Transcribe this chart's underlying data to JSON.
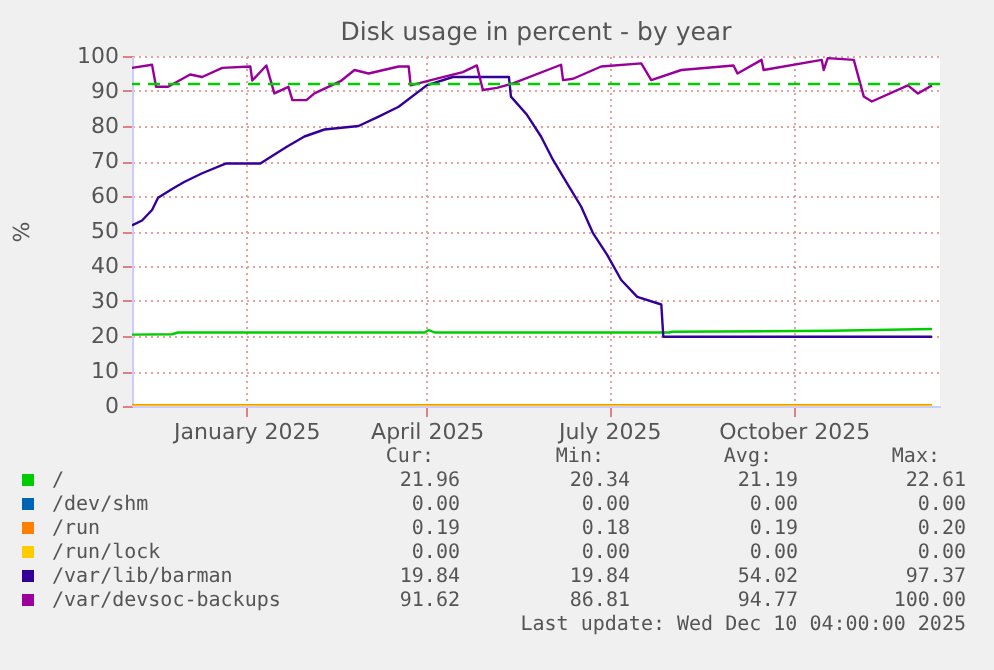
{
  "chart_data": {
    "type": "line",
    "title": "Disk usage in percent - by year",
    "ylabel": "%",
    "xlim": [
      "2024-11-05",
      "2025-12-13"
    ],
    "xticks": [
      {
        "value": "2025-01-01",
        "label": "January 2025"
      },
      {
        "value": "2025-04-01",
        "label": "April 2025"
      },
      {
        "value": "2025-07-01",
        "label": "July 2025"
      },
      {
        "value": "2025-10-01",
        "label": "October 2025"
      }
    ],
    "ylim": [
      0,
      100
    ],
    "yticks": [
      0,
      10,
      20,
      30,
      40,
      50,
      60,
      70,
      80,
      90,
      100
    ],
    "grid": true,
    "legend": "bottom",
    "line_style": "solid",
    "series": [
      {
        "name": "/",
        "color": "#00cc00",
        "x": [
          "2024-11-05",
          "2024-11-25",
          "2024-11-28",
          "2025-03-31",
          "2025-04-02",
          "2025-04-05",
          "2025-07-31",
          "2025-08-01",
          "2025-10-20",
          "2025-12-09"
        ],
        "values": [
          20.4,
          20.5,
          21,
          21,
          21.7,
          21,
          21,
          21.2,
          21.5,
          22
        ]
      },
      {
        "name": "/dev/shm",
        "color": "#0066b3"
      },
      {
        "name": "/run",
        "color": "#ff8000",
        "x": [
          "2024-11-05",
          "2025-12-09"
        ],
        "values": [
          0.2,
          0.2
        ]
      },
      {
        "name": "/run/lock",
        "color": "#ffcc00",
        "x": [
          "2024-11-05",
          "2025-12-09"
        ],
        "values": [
          0,
          0
        ]
      },
      {
        "name": "/var/lib/barman",
        "color": "#330099",
        "x": [
          "2024-11-05",
          "2024-11-10",
          "2024-11-15",
          "2024-11-18",
          "2024-11-25",
          "2024-12-01",
          "2024-12-10",
          "2024-12-22",
          "2025-01-08",
          "2025-01-21",
          "2025-01-30",
          "2025-02-09",
          "2025-02-26",
          "2025-03-08",
          "2025-03-18",
          "2025-04-01",
          "2025-04-14",
          "2025-05-12",
          "2025-05-13",
          "2025-05-21",
          "2025-05-28",
          "2025-06-03",
          "2025-06-10",
          "2025-06-17",
          "2025-06-23",
          "2025-06-30",
          "2025-07-07",
          "2025-07-15",
          "2025-07-27",
          "2025-07-28",
          "2025-12-09"
        ],
        "values": [
          51.6,
          53,
          56,
          59.5,
          62,
          64,
          66.5,
          69.3,
          69.3,
          74,
          77,
          79,
          80,
          82.7,
          85.5,
          91.6,
          94,
          94,
          88.4,
          83.2,
          77,
          70.3,
          63.6,
          57,
          49.3,
          43.2,
          36,
          31.2,
          29,
          19.8,
          19.8
        ]
      },
      {
        "name": "/var/devsoc-backups",
        "color": "#990099",
        "x": [
          "2024-11-05",
          "2024-11-15",
          "2024-11-17",
          "2024-11-23",
          "2024-12-04",
          "2024-12-10",
          "2024-12-20",
          "2025-01-03",
          "2025-01-04",
          "2025-01-11",
          "2025-01-15",
          "2025-01-22",
          "2025-01-24",
          "2025-01-31",
          "2025-02-04",
          "2025-02-17",
          "2025-02-24",
          "2025-03-03",
          "2025-03-18",
          "2025-03-23",
          "2025-03-24",
          "2025-04-07",
          "2025-04-19",
          "2025-04-26",
          "2025-04-29",
          "2025-05-06",
          "2025-05-14",
          "2025-06-07",
          "2025-06-08",
          "2025-06-13",
          "2025-06-27",
          "2025-07-17",
          "2025-07-22",
          "2025-08-06",
          "2025-09-01",
          "2025-09-03",
          "2025-09-15",
          "2025-09-16",
          "2025-10-15",
          "2025-10-16",
          "2025-10-18",
          "2025-10-31",
          "2025-11-05",
          "2025-11-09",
          "2025-11-27",
          "2025-12-02",
          "2025-12-09"
        ],
        "values": [
          96.6,
          97.5,
          91.2,
          91.2,
          94.7,
          94,
          96.6,
          97,
          93,
          97.3,
          89.3,
          91.2,
          87.4,
          87.4,
          89.3,
          92.8,
          96,
          95,
          97,
          97,
          91.6,
          93.7,
          95.4,
          97.3,
          90.3,
          90.9,
          92.2,
          97.5,
          93.1,
          93.5,
          97,
          97.9,
          93.1,
          96,
          97.3,
          95,
          98.9,
          96,
          98.9,
          96,
          99.4,
          98.9,
          88.4,
          87,
          91.6,
          89.3,
          91.6
        ]
      }
    ],
    "ref_lines": [
      {
        "axis": "y",
        "value": 92,
        "color": "#00cc00",
        "line_style": "dashed"
      }
    ],
    "annotations": [
      "Cur:",
      "Min:",
      "Avg:",
      "Max:",
      "21.96",
      "20.34",
      "21.19",
      "22.61",
      "0.00",
      "0.00",
      "0.00",
      "0.00",
      "0.19",
      "0.18",
      "0.19",
      "0.20",
      "0.00",
      "0.00",
      "0.00",
      "0.00",
      "19.84",
      "19.84",
      "54.02",
      "97.37",
      "91.62",
      "86.81",
      "94.77",
      "100.00",
      "Last update: Wed Dec 10 04:00:00 2025"
    ]
  }
}
